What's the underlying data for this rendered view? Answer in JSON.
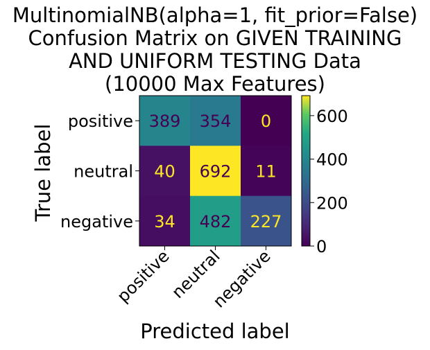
{
  "chart_data": {
    "type": "heatmap",
    "title_lines": [
      "MultinomialNB(alpha=1, fit_prior=False)",
      "Confusion Matrix on GIVEN TRAINING",
      "AND UNIFORM TESTING Data",
      "(10000 Max Features)"
    ],
    "xlabel": "Predicted label",
    "ylabel": "True label",
    "x_categories": [
      "positive",
      "neutral",
      "negative"
    ],
    "y_categories": [
      "positive",
      "neutral",
      "negative"
    ],
    "matrix": [
      [
        389,
        354,
        0
      ],
      [
        40,
        692,
        11
      ],
      [
        34,
        482,
        227
      ]
    ],
    "colormap": "viridis",
    "value_range": [
      0,
      692
    ],
    "colorbar_ticks": [
      0,
      200,
      400,
      600
    ],
    "colorbar_tick_labels": [
      "0",
      "200",
      "400",
      "600"
    ],
    "annotation_colors": {
      "on_dark": "#fde725",
      "on_light": "#440154"
    }
  }
}
